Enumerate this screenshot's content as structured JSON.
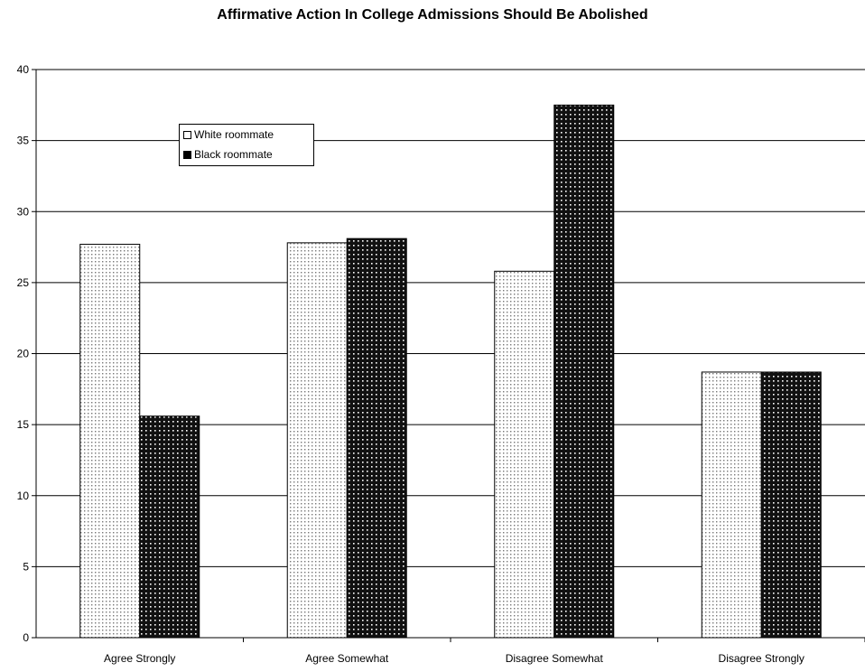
{
  "chart_data": {
    "type": "bar",
    "title": "Affirmative Action In College Admissions Should Be Abolished",
    "categories": [
      "Agree Strongly",
      "Agree Somewhat",
      "Disagree Somewhat",
      "Disagree Strongly"
    ],
    "series": [
      {
        "name": "White roommate",
        "values": [
          27.7,
          27.8,
          25.8,
          18.7
        ],
        "color": "#f2f2f2"
      },
      {
        "name": "Black roommate",
        "values": [
          15.6,
          28.1,
          37.5,
          18.7
        ],
        "color": "#000000"
      }
    ],
    "ylim": [
      0,
      40
    ],
    "yticks": [
      "0",
      "5",
      "10",
      "15",
      "20",
      "25",
      "30",
      "35",
      "40"
    ],
    "grid": true,
    "legend": "top-left"
  }
}
